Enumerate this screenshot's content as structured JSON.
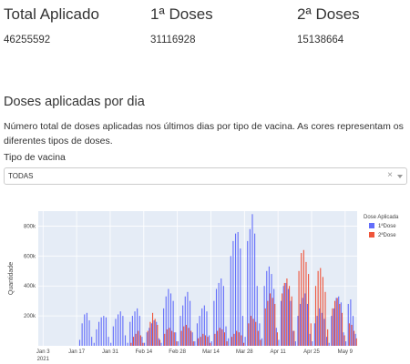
{
  "stats": [
    {
      "title": "Total Aplicado",
      "value": "46255592"
    },
    {
      "title": "1ª Doses",
      "value": "31116928"
    },
    {
      "title": "2ª Doses",
      "value": "15138664"
    }
  ],
  "section": {
    "title": "Doses aplicadas por dia",
    "description": "Número total de doses aplicadas nos últimos dias por tipo de vacina. As cores representam os diferentes tipos de doses."
  },
  "filter": {
    "label": "Tipo de vacina",
    "value": "TODAS",
    "clear_glyph": "×"
  },
  "colors": {
    "dose1": "#636efa",
    "dose2": "#ef553b",
    "plot_bg": "#e5ecf6",
    "grid": "#ffffff"
  },
  "chart_data": {
    "type": "bar",
    "xlabel": "",
    "ylabel": "Quantidade",
    "ylim": [
      0,
      900000
    ],
    "yticks": [
      {
        "value": 200000,
        "label": "200k"
      },
      {
        "value": 400000,
        "label": "400k"
      },
      {
        "value": 600000,
        "label": "600k"
      },
      {
        "value": 800000,
        "label": "800k"
      }
    ],
    "xticks": [
      {
        "date": "2021-01-03",
        "label": "Jan 3",
        "sublabel": "2021"
      },
      {
        "date": "2021-01-17",
        "label": "Jan 17"
      },
      {
        "date": "2021-01-31",
        "label": "Jan 31"
      },
      {
        "date": "2021-02-14",
        "label": "Feb 14"
      },
      {
        "date": "2021-02-28",
        "label": "Feb 28"
      },
      {
        "date": "2021-03-14",
        "label": "Mar 14"
      },
      {
        "date": "2021-03-28",
        "label": "Mar 28"
      },
      {
        "date": "2021-04-11",
        "label": "Apr 11"
      },
      {
        "date": "2021-04-25",
        "label": "Apr 25"
      },
      {
        "date": "2021-05-09",
        "label": "May 9"
      }
    ],
    "xrange": [
      "2021-01-01",
      "2021-05-14"
    ],
    "legend": {
      "title": "Dose Aplicada",
      "position": "right"
    },
    "series": [
      {
        "name": "1ªDose",
        "points": [
          [
            "2021-01-18",
            40000
          ],
          [
            "2021-01-19",
            150000
          ],
          [
            "2021-01-20",
            210000
          ],
          [
            "2021-01-21",
            220000
          ],
          [
            "2021-01-22",
            170000
          ],
          [
            "2021-01-23",
            60000
          ],
          [
            "2021-01-24",
            20000
          ],
          [
            "2021-01-25",
            110000
          ],
          [
            "2021-01-26",
            160000
          ],
          [
            "2021-01-27",
            190000
          ],
          [
            "2021-01-28",
            200000
          ],
          [
            "2021-01-29",
            190000
          ],
          [
            "2021-01-30",
            60000
          ],
          [
            "2021-01-31",
            20000
          ],
          [
            "2021-02-01",
            130000
          ],
          [
            "2021-02-02",
            180000
          ],
          [
            "2021-02-03",
            210000
          ],
          [
            "2021-02-04",
            230000
          ],
          [
            "2021-02-05",
            200000
          ],
          [
            "2021-02-06",
            70000
          ],
          [
            "2021-02-07",
            20000
          ],
          [
            "2021-02-08",
            160000
          ],
          [
            "2021-02-09",
            200000
          ],
          [
            "2021-02-10",
            230000
          ],
          [
            "2021-02-11",
            250000
          ],
          [
            "2021-02-12",
            200000
          ],
          [
            "2021-02-13",
            60000
          ],
          [
            "2021-02-14",
            20000
          ],
          [
            "2021-02-15",
            90000
          ],
          [
            "2021-02-16",
            120000
          ],
          [
            "2021-02-17",
            150000
          ],
          [
            "2021-02-18",
            170000
          ],
          [
            "2021-02-19",
            160000
          ],
          [
            "2021-02-20",
            50000
          ],
          [
            "2021-02-21",
            20000
          ],
          [
            "2021-02-22",
            250000
          ],
          [
            "2021-02-23",
            330000
          ],
          [
            "2021-02-24",
            380000
          ],
          [
            "2021-02-25",
            350000
          ],
          [
            "2021-02-26",
            300000
          ],
          [
            "2021-02-27",
            90000
          ],
          [
            "2021-02-28",
            30000
          ],
          [
            "2021-03-01",
            200000
          ],
          [
            "2021-03-02",
            270000
          ],
          [
            "2021-03-03",
            330000
          ],
          [
            "2021-03-04",
            360000
          ],
          [
            "2021-03-05",
            300000
          ],
          [
            "2021-03-06",
            90000
          ],
          [
            "2021-03-07",
            30000
          ],
          [
            "2021-03-08",
            150000
          ],
          [
            "2021-03-09",
            200000
          ],
          [
            "2021-03-10",
            250000
          ],
          [
            "2021-03-11",
            270000
          ],
          [
            "2021-03-12",
            230000
          ],
          [
            "2021-03-13",
            70000
          ],
          [
            "2021-03-14",
            30000
          ],
          [
            "2021-03-15",
            300000
          ],
          [
            "2021-03-16",
            380000
          ],
          [
            "2021-03-17",
            420000
          ],
          [
            "2021-03-18",
            450000
          ],
          [
            "2021-03-19",
            400000
          ],
          [
            "2021-03-20",
            130000
          ],
          [
            "2021-03-21",
            50000
          ],
          [
            "2021-03-22",
            600000
          ],
          [
            "2021-03-23",
            700000
          ],
          [
            "2021-03-24",
            750000
          ],
          [
            "2021-03-25",
            760000
          ],
          [
            "2021-03-26",
            650000
          ],
          [
            "2021-03-27",
            200000
          ],
          [
            "2021-03-28",
            60000
          ],
          [
            "2021-03-29",
            700000
          ],
          [
            "2021-03-30",
            780000
          ],
          [
            "2021-03-31",
            880000
          ],
          [
            "2021-04-01",
            750000
          ],
          [
            "2021-04-02",
            400000
          ],
          [
            "2021-04-03",
            150000
          ],
          [
            "2021-04-04",
            50000
          ],
          [
            "2021-04-05",
            400000
          ],
          [
            "2021-04-06",
            500000
          ],
          [
            "2021-04-07",
            530000
          ],
          [
            "2021-04-08",
            480000
          ],
          [
            "2021-04-09",
            380000
          ],
          [
            "2021-04-10",
            120000
          ],
          [
            "2021-04-11",
            40000
          ],
          [
            "2021-04-12",
            300000
          ],
          [
            "2021-04-13",
            400000
          ],
          [
            "2021-04-14",
            420000
          ],
          [
            "2021-04-15",
            380000
          ],
          [
            "2021-04-16",
            300000
          ],
          [
            "2021-04-17",
            100000
          ],
          [
            "2021-04-18",
            30000
          ],
          [
            "2021-04-19",
            200000
          ],
          [
            "2021-04-20",
            280000
          ],
          [
            "2021-04-21",
            320000
          ],
          [
            "2021-04-22",
            350000
          ],
          [
            "2021-04-23",
            280000
          ],
          [
            "2021-04-24",
            80000
          ],
          [
            "2021-04-25",
            30000
          ],
          [
            "2021-04-26",
            150000
          ],
          [
            "2021-04-27",
            200000
          ],
          [
            "2021-04-28",
            250000
          ],
          [
            "2021-04-29",
            220000
          ],
          [
            "2021-04-30",
            180000
          ],
          [
            "2021-05-01",
            60000
          ],
          [
            "2021-05-02",
            20000
          ],
          [
            "2021-05-03",
            200000
          ],
          [
            "2021-05-04",
            250000
          ],
          [
            "2021-05-05",
            320000
          ],
          [
            "2021-05-06",
            330000
          ],
          [
            "2021-05-07",
            290000
          ],
          [
            "2021-05-08",
            90000
          ],
          [
            "2021-05-09",
            30000
          ],
          [
            "2021-05-10",
            280000
          ],
          [
            "2021-05-11",
            310000
          ],
          [
            "2021-05-12",
            200000
          ],
          [
            "2021-05-13",
            80000
          ]
        ]
      },
      {
        "name": "2ªDose",
        "points": [
          [
            "2021-02-08",
            20000
          ],
          [
            "2021-02-09",
            60000
          ],
          [
            "2021-02-10",
            80000
          ],
          [
            "2021-02-11",
            100000
          ],
          [
            "2021-02-12",
            70000
          ],
          [
            "2021-02-13",
            20000
          ],
          [
            "2021-02-15",
            100000
          ],
          [
            "2021-02-16",
            160000
          ],
          [
            "2021-02-17",
            220000
          ],
          [
            "2021-02-18",
            180000
          ],
          [
            "2021-02-19",
            140000
          ],
          [
            "2021-02-20",
            40000
          ],
          [
            "2021-02-22",
            80000
          ],
          [
            "2021-02-23",
            110000
          ],
          [
            "2021-02-24",
            120000
          ],
          [
            "2021-02-25",
            100000
          ],
          [
            "2021-02-26",
            90000
          ],
          [
            "2021-02-27",
            30000
          ],
          [
            "2021-03-01",
            100000
          ],
          [
            "2021-03-02",
            130000
          ],
          [
            "2021-03-03",
            140000
          ],
          [
            "2021-03-04",
            120000
          ],
          [
            "2021-03-05",
            100000
          ],
          [
            "2021-03-06",
            30000
          ],
          [
            "2021-03-08",
            50000
          ],
          [
            "2021-03-09",
            60000
          ],
          [
            "2021-03-10",
            80000
          ],
          [
            "2021-03-11",
            70000
          ],
          [
            "2021-03-12",
            60000
          ],
          [
            "2021-03-13",
            20000
          ],
          [
            "2021-03-15",
            80000
          ],
          [
            "2021-03-16",
            100000
          ],
          [
            "2021-03-17",
            120000
          ],
          [
            "2021-03-18",
            110000
          ],
          [
            "2021-03-19",
            90000
          ],
          [
            "2021-03-20",
            30000
          ],
          [
            "2021-03-22",
            60000
          ],
          [
            "2021-03-23",
            80000
          ],
          [
            "2021-03-24",
            100000
          ],
          [
            "2021-03-25",
            90000
          ],
          [
            "2021-03-26",
            70000
          ],
          [
            "2021-03-27",
            20000
          ],
          [
            "2021-03-29",
            150000
          ],
          [
            "2021-03-30",
            200000
          ],
          [
            "2021-03-31",
            180000
          ],
          [
            "2021-04-01",
            160000
          ],
          [
            "2021-04-02",
            100000
          ],
          [
            "2021-04-03",
            40000
          ],
          [
            "2021-04-05",
            250000
          ],
          [
            "2021-04-06",
            300000
          ],
          [
            "2021-04-07",
            350000
          ],
          [
            "2021-04-08",
            320000
          ],
          [
            "2021-04-09",
            280000
          ],
          [
            "2021-04-10",
            90000
          ],
          [
            "2021-04-12",
            350000
          ],
          [
            "2021-04-13",
            420000
          ],
          [
            "2021-04-14",
            450000
          ],
          [
            "2021-04-15",
            400000
          ],
          [
            "2021-04-16",
            330000
          ],
          [
            "2021-04-17",
            100000
          ],
          [
            "2021-04-19",
            500000
          ],
          [
            "2021-04-20",
            620000
          ],
          [
            "2021-04-21",
            640000
          ],
          [
            "2021-04-22",
            560000
          ],
          [
            "2021-04-23",
            480000
          ],
          [
            "2021-04-24",
            150000
          ],
          [
            "2021-04-26",
            400000
          ],
          [
            "2021-04-27",
            500000
          ],
          [
            "2021-04-28",
            520000
          ],
          [
            "2021-04-29",
            460000
          ],
          [
            "2021-04-30",
            360000
          ],
          [
            "2021-05-01",
            110000
          ],
          [
            "2021-05-03",
            250000
          ],
          [
            "2021-05-04",
            300000
          ],
          [
            "2021-05-05",
            320000
          ],
          [
            "2021-05-06",
            280000
          ],
          [
            "2021-05-07",
            220000
          ],
          [
            "2021-05-08",
            70000
          ],
          [
            "2021-05-10",
            150000
          ],
          [
            "2021-05-11",
            140000
          ],
          [
            "2021-05-12",
            100000
          ],
          [
            "2021-05-13",
            50000
          ]
        ]
      }
    ]
  }
}
